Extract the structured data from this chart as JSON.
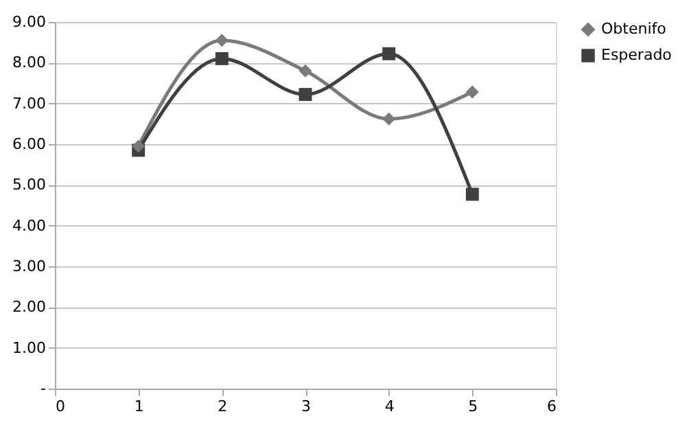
{
  "chart_data": {
    "type": "line",
    "x": [
      1,
      2,
      3,
      4,
      5
    ],
    "series": [
      {
        "name": "Obtenifo",
        "color": "#7a7a7a",
        "marker": "diamond",
        "values": [
          5.95,
          8.55,
          7.8,
          6.62,
          7.28
        ]
      },
      {
        "name": "Esperado",
        "color": "#404040",
        "marker": "square",
        "values": [
          5.85,
          8.1,
          7.22,
          8.22,
          4.77
        ]
      }
    ],
    "xlim": [
      0,
      6
    ],
    "xticks": [
      0,
      1,
      2,
      3,
      4,
      5,
      6
    ],
    "ylim": [
      0,
      9
    ],
    "yticks": [
      {
        "value": 0,
        "label": "-"
      },
      {
        "value": 1,
        "label": "1.00"
      },
      {
        "value": 2,
        "label": "2.00"
      },
      {
        "value": 3,
        "label": "3.00"
      },
      {
        "value": 4,
        "label": "4.00"
      },
      {
        "value": 5,
        "label": "5.00"
      },
      {
        "value": 6,
        "label": "6.00"
      },
      {
        "value": 7,
        "label": "7.00"
      },
      {
        "value": 8,
        "label": "8.00"
      },
      {
        "value": 9,
        "label": "9.00"
      }
    ],
    "grid": "y",
    "legend": "right",
    "line_style": "solid"
  }
}
